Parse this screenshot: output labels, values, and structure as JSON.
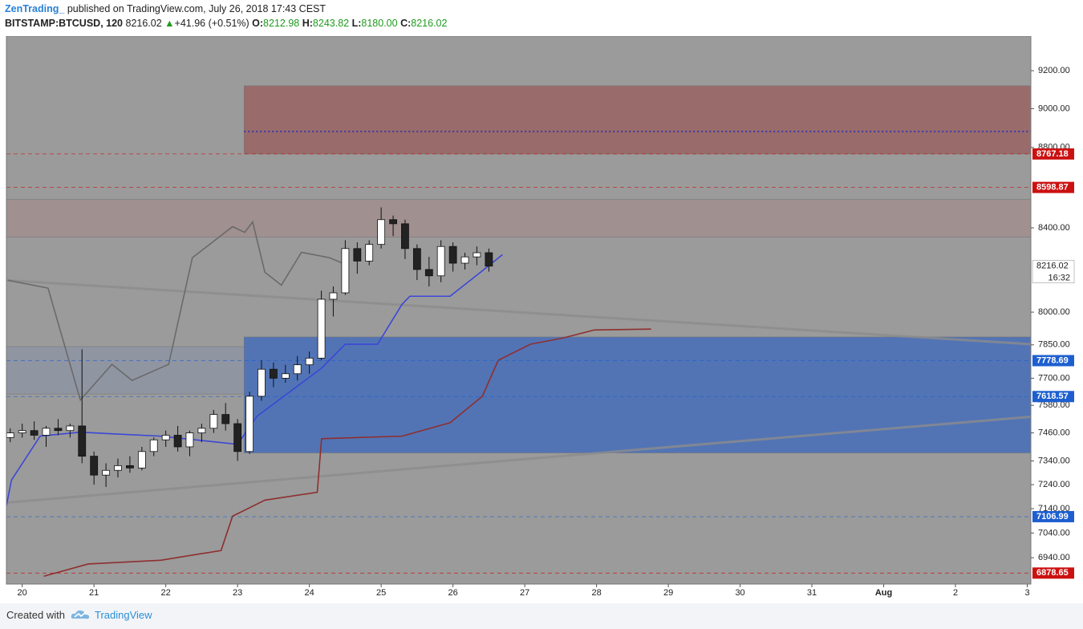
{
  "header": {
    "author": "ZenTrading_",
    "published": "published on TradingView.com, July 26, 2018 17:43 CEST",
    "symbol": "BITSTAMP:BTCUSD, 120",
    "price": "8216.02",
    "arrow": "▲",
    "change": "+41.96 (+0.51%)",
    "o_label": "O:",
    "o": "8212.98",
    "h_label": "H:",
    "h": "8243.82",
    "l_label": "L:",
    "l": "8180.00",
    "c_label": "C:",
    "c": "8216.02"
  },
  "footer": {
    "created": "Created with",
    "brand": "TradingView"
  },
  "chart_data": {
    "type": "candlestick",
    "log_scale": true,
    "xlim": [
      -0.22,
      14.05
    ],
    "ylim": [
      6835,
      9386
    ],
    "xticks": [
      {
        "value": 0,
        "label": "20"
      },
      {
        "value": 1,
        "label": "21"
      },
      {
        "value": 2,
        "label": "22"
      },
      {
        "value": 3,
        "label": "23"
      },
      {
        "value": 4,
        "label": "24"
      },
      {
        "value": 5,
        "label": "25"
      },
      {
        "value": 6,
        "label": "26"
      },
      {
        "value": 7,
        "label": "27"
      },
      {
        "value": 8,
        "label": "28"
      },
      {
        "value": 9,
        "label": "29"
      },
      {
        "value": 10,
        "label": "30"
      },
      {
        "value": 11,
        "label": "31"
      },
      {
        "value": 12,
        "label": "Aug"
      },
      {
        "value": 13,
        "label": "2"
      },
      {
        "value": 14,
        "label": "3"
      }
    ],
    "yticks": [
      {
        "value": 9200,
        "label": "9200.00"
      },
      {
        "value": 9000,
        "label": "9000.00"
      },
      {
        "value": 8800,
        "label": "8800.00"
      },
      {
        "value": 8400,
        "label": "8400.00"
      },
      {
        "value": 8000,
        "label": "8000.00"
      },
      {
        "value": 7850,
        "label": "7850.00"
      },
      {
        "value": 7700,
        "label": "7700.00"
      },
      {
        "value": 7580,
        "label": "7580.00"
      },
      {
        "value": 7460,
        "label": "7460.00"
      },
      {
        "value": 7340,
        "label": "7340.00"
      },
      {
        "value": 7240,
        "label": "7240.00"
      },
      {
        "value": 7140,
        "label": "7140.00"
      },
      {
        "value": 7040,
        "label": "7040.00"
      },
      {
        "value": 6940,
        "label": "6940.00"
      }
    ],
    "x": [
      -0.167,
      0,
      0.167,
      0.333,
      0.5,
      0.667,
      0.833,
      1,
      1.167,
      1.333,
      1.5,
      1.667,
      1.833,
      2,
      2.167,
      2.333,
      2.5,
      2.667,
      2.833,
      3,
      3.167,
      3.333,
      3.5,
      3.667,
      3.833,
      4,
      4.167,
      4.333,
      4.5,
      4.667,
      4.833,
      5,
      5.167,
      5.333,
      5.5,
      5.667,
      5.833,
      6,
      6.167,
      6.333,
      6.5
    ],
    "open": [
      7440,
      7460,
      7470,
      7450,
      7480,
      7470,
      7490,
      7360,
      7280,
      7300,
      7320,
      7310,
      7380,
      7430,
      7450,
      7400,
      7460,
      7480,
      7540,
      7500,
      7380,
      7620,
      7740,
      7700,
      7720,
      7760,
      7790,
      8060,
      8090,
      8300,
      8240,
      8320,
      8440,
      8420,
      8300,
      8200,
      8170,
      8310,
      8230,
      8260,
      8280
    ],
    "high": [
      7480,
      7500,
      7510,
      7490,
      7520,
      7500,
      7830,
      7380,
      7330,
      7350,
      7360,
      7400,
      7440,
      7470,
      7490,
      7470,
      7500,
      7560,
      7590,
      7520,
      7640,
      7780,
      7770,
      7760,
      7800,
      7820,
      8100,
      8120,
      8340,
      8330,
      8340,
      8500,
      8460,
      8440,
      8320,
      8260,
      8340,
      8330,
      8280,
      8310,
      8300
    ],
    "low": [
      7420,
      7440,
      7430,
      7400,
      7450,
      7440,
      7330,
      7240,
      7230,
      7270,
      7290,
      7300,
      7360,
      7400,
      7380,
      7360,
      7420,
      7460,
      7470,
      7340,
      7370,
      7600,
      7660,
      7680,
      7690,
      7720,
      7780,
      7980,
      8080,
      8180,
      8220,
      8300,
      8360,
      8250,
      8150,
      8120,
      8140,
      8190,
      8200,
      8220,
      8190
    ],
    "close": [
      7460,
      7470,
      7450,
      7480,
      7470,
      7490,
      7360,
      7280,
      7300,
      7320,
      7310,
      7380,
      7430,
      7450,
      7400,
      7460,
      7480,
      7540,
      7500,
      7380,
      7620,
      7740,
      7700,
      7720,
      7760,
      7790,
      8060,
      8090,
      8300,
      8240,
      8320,
      8440,
      8420,
      8300,
      8200,
      8170,
      8310,
      8230,
      8260,
      8280,
      8216.02
    ],
    "countdown": "16:32",
    "lines": [
      {
        "color": "#3b47d6",
        "x": [
          -0.22,
          -0.15,
          0.25,
          0.81,
          1.93,
          3.0,
          3.27,
          4.17,
          4.5,
          4.95,
          5.29,
          5.4,
          5.96,
          6.41,
          6.69
        ],
        "values": [
          7152,
          7259,
          7446,
          7463,
          7446,
          7411,
          7532,
          7745,
          7853,
          7853,
          8036,
          8074,
          8074,
          8194,
          8271
        ]
      },
      {
        "color": "#8e2f2f",
        "x": [
          0.3,
          0.92,
          1.93,
          2.77,
          2.93,
          3.38,
          4.11,
          4.17,
          5.29,
          5.96,
          6.41,
          6.63,
          7.08,
          7.53,
          7.97,
          8.76
        ],
        "values": [
          6866,
          6915,
          6930,
          6969,
          7109,
          7175,
          7208,
          7435,
          7446,
          7504,
          7620,
          7780,
          7853,
          7881,
          7918,
          7922
        ]
      },
      {
        "color": "#6a6a6a",
        "x": [
          -0.2,
          0.36,
          0.81,
          1.25,
          1.53,
          2.04,
          2.37,
          2.93,
          3.1,
          3.21,
          3.38,
          3.61,
          3.89,
          4.28,
          4.5
        ],
        "values": [
          8149,
          8112,
          7603,
          7762,
          7690,
          7762,
          8256,
          8406,
          8378,
          8429,
          8187,
          8126,
          8282,
          8256,
          8225
        ]
      }
    ],
    "trendlines": [
      {
        "color": "#8c8c8c",
        "x": [
          -0.22,
          14.05
        ],
        "values": [
          8149,
          7853
        ]
      },
      {
        "color": "#8c8c8c",
        "x": [
          -0.22,
          14.05
        ],
        "values": [
          7165,
          7530
        ]
      }
    ],
    "zones": [
      {
        "color": "#9a6767",
        "x": [
          3.09,
          14.05
        ],
        "range": [
          8767,
          9120
        ]
      },
      {
        "color": "#4c71b7",
        "x": [
          3.09,
          14.05
        ],
        "range": [
          7374,
          7886
        ]
      },
      {
        "color": "#8f95a3",
        "x": [
          -0.22,
          3.09
        ],
        "range": [
          7630,
          7842
        ]
      },
      {
        "color": "#a18f8f",
        "x": [
          -0.22,
          14.05
        ],
        "range": [
          8355,
          8539
        ]
      }
    ],
    "midline": {
      "color": "#3a3aa8",
      "value": 8882
    },
    "levels": [
      {
        "value": 8767.18,
        "color": "#cc1111"
      },
      {
        "value": 8598.87,
        "color": "#cc1111"
      },
      {
        "value": 7778.69,
        "color": "#1d5fd0"
      },
      {
        "value": 7618.57,
        "color": "#1d5fd0"
      },
      {
        "value": 7106.99,
        "color": "#1d5fd0"
      },
      {
        "value": 6878.65,
        "color": "#cc1111"
      }
    ]
  }
}
